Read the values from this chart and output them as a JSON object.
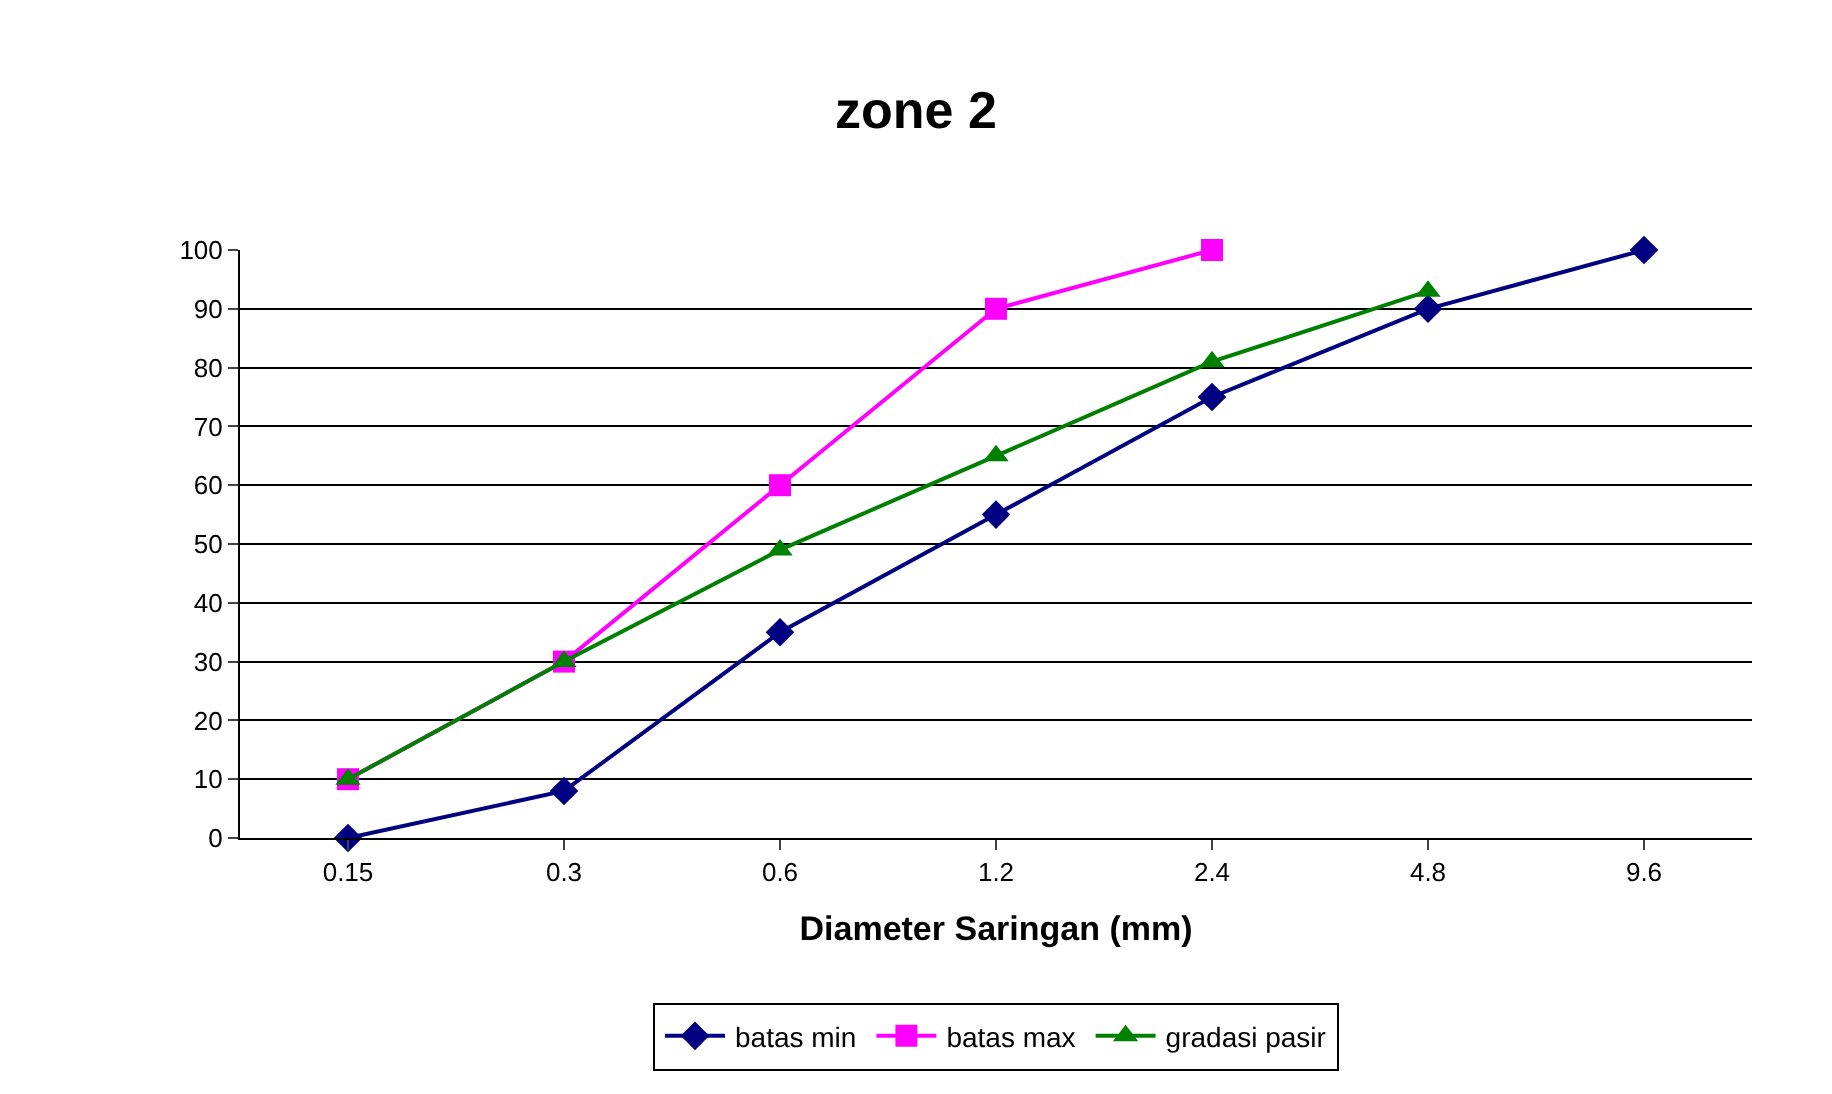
{
  "chart_data": {
    "type": "line",
    "title": "zone 2",
    "xlabel": "Diameter Saringan (mm)",
    "categories": [
      "0.15",
      "0.3",
      "0.6",
      "1.2",
      "2.4",
      "4.8",
      "9.6"
    ],
    "series": [
      {
        "name": "batas min",
        "color": "#000080",
        "marker": "diamond",
        "values": [
          0,
          8,
          35,
          55,
          75,
          90,
          100
        ]
      },
      {
        "name": "batas max",
        "color": "#ff00ff",
        "marker": "square",
        "values": [
          10,
          30,
          60,
          90,
          100,
          null,
          null
        ]
      },
      {
        "name": "gradasi pasir",
        "color": "#008000",
        "marker": "triangle",
        "values": [
          10,
          30,
          49,
          65,
          81,
          93,
          null
        ]
      }
    ],
    "ylim": [
      0,
      100
    ],
    "yticks": [
      0,
      10,
      20,
      30,
      40,
      50,
      60,
      70,
      80,
      90,
      100
    ],
    "grid": "y",
    "legend": "bottom",
    "line_style": "solid"
  }
}
